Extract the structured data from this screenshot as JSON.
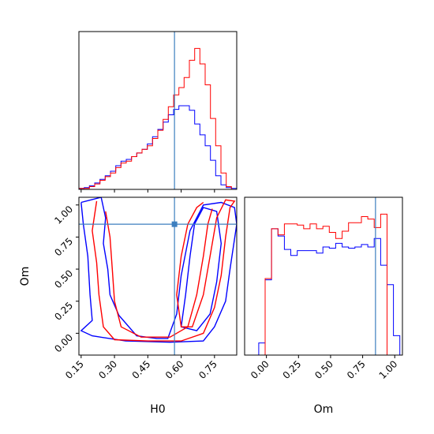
{
  "chart_data": {
    "type": "corner",
    "parameters": [
      "H0",
      "Om"
    ],
    "truth": {
      "H0": 0.57,
      "Om": 0.85
    },
    "colors": {
      "series_a": "#0000ff",
      "series_b": "#ff0000",
      "truth": "#3d7fbf"
    },
    "panels": [
      {
        "id": "hist-H0",
        "type": "histogram",
        "x_range": [
          0.14,
          0.85
        ],
        "bin_edges": [
          0.14,
          0.1637,
          0.1873,
          0.211,
          0.2347,
          0.2583,
          0.282,
          0.3057,
          0.3293,
          0.353,
          0.3767,
          0.4003,
          0.424,
          0.4477,
          0.4713,
          0.495,
          0.5187,
          0.5423,
          0.566,
          0.5897,
          0.6133,
          0.637,
          0.6607,
          0.6843,
          0.708,
          0.7317,
          0.7553,
          0.779,
          0.8027,
          0.8263,
          0.85
        ],
        "series": [
          {
            "color_key": "series_a",
            "counts": [
              1,
              2,
              4,
              7,
              11,
              15,
              20,
              26,
              31,
              33,
              36,
              40,
              44,
              50,
              58,
              66,
              74,
              82,
              88,
              92,
              92,
              87,
              72,
              60,
              48,
              32,
              15,
              5,
              2,
              1
            ]
          },
          {
            "color_key": "series_b",
            "counts": [
              1,
              1,
              3,
              6,
              10,
              14,
              18,
              24,
              29,
              31,
              36,
              40,
              44,
              48,
              56,
              65,
              77,
              91,
              104,
              112,
              123,
              142,
              155,
              138,
              115,
              78,
              48,
              18,
              3,
              0
            ]
          }
        ],
        "x_ticks": [
          0.15,
          0.3,
          0.45,
          0.6,
          0.75
        ]
      },
      {
        "id": "contour-H0-Om",
        "type": "contour",
        "x_range": [
          0.14,
          0.85
        ],
        "y_range": [
          -0.17,
          1.06
        ],
        "x_ticks": [
          0.15,
          0.3,
          0.45,
          0.6,
          0.75
        ],
        "y_ticks": [
          0.0,
          0.25,
          0.5,
          0.75,
          1.0
        ],
        "x_tick_labels": [
          "0.15",
          "0.30",
          "0.45",
          "0.60",
          "0.75"
        ],
        "y_tick_labels": [
          "0.00",
          "0.25",
          "0.50",
          "0.75",
          "1.00"
        ],
        "xlabel": "H0",
        "ylabel": "Om",
        "contours": [
          {
            "color_key": "series_a",
            "points": [
              [
                0.15,
                1.02
              ],
              [
                0.24,
                1.06
              ],
              [
                0.26,
                0.9
              ],
              [
                0.25,
                0.7
              ],
              [
                0.27,
                0.5
              ],
              [
                0.28,
                0.3
              ],
              [
                0.32,
                0.14
              ],
              [
                0.4,
                -0.02
              ],
              [
                0.49,
                -0.04
              ],
              [
                0.54,
                -0.04
              ],
              [
                0.58,
                0.15
              ],
              [
                0.6,
                0.45
              ],
              [
                0.64,
                0.8
              ],
              [
                0.7,
                1.0
              ],
              [
                0.78,
                1.02
              ],
              [
                0.84,
                0.98
              ],
              [
                0.85,
                0.85
              ],
              [
                0.82,
                0.5
              ],
              [
                0.8,
                0.25
              ],
              [
                0.75,
                0.05
              ],
              [
                0.7,
                -0.06
              ],
              [
                0.55,
                -0.07
              ],
              [
                0.35,
                -0.06
              ],
              [
                0.2,
                -0.02
              ],
              [
                0.15,
                0.02
              ],
              [
                0.2,
                0.1
              ],
              [
                0.19,
                0.3
              ],
              [
                0.18,
                0.6
              ],
              [
                0.16,
                0.85
              ],
              [
                0.15,
                1.02
              ]
            ]
          },
          {
            "color_key": "series_a",
            "points": [
              [
                0.6,
                0.05
              ],
              [
                0.62,
                0.3
              ],
              [
                0.64,
                0.6
              ],
              [
                0.66,
                0.85
              ],
              [
                0.7,
                0.98
              ],
              [
                0.76,
                0.95
              ],
              [
                0.78,
                0.7
              ],
              [
                0.76,
                0.4
              ],
              [
                0.73,
                0.15
              ],
              [
                0.67,
                0.02
              ],
              [
                0.6,
                0.05
              ]
            ]
          },
          {
            "color_key": "series_b",
            "points": [
              [
                0.22,
                1.03
              ],
              [
                0.2,
                0.8
              ],
              [
                0.22,
                0.55
              ],
              [
                0.23,
                0.3
              ],
              [
                0.25,
                0.05
              ],
              [
                0.3,
                -0.05
              ],
              [
                0.45,
                -0.06
              ],
              [
                0.6,
                -0.06
              ],
              [
                0.7,
                0.0
              ],
              [
                0.75,
                0.2
              ],
              [
                0.78,
                0.45
              ],
              [
                0.8,
                0.75
              ],
              [
                0.82,
                0.98
              ],
              [
                0.84,
                1.03
              ],
              [
                0.8,
                1.04
              ],
              [
                0.76,
                0.9
              ],
              [
                0.73,
                0.6
              ],
              [
                0.7,
                0.3
              ],
              [
                0.65,
                0.05
              ],
              [
                0.6,
                0.05
              ],
              [
                0.58,
                0.3
              ],
              [
                0.6,
                0.6
              ],
              [
                0.63,
                0.85
              ],
              [
                0.67,
                0.98
              ],
              [
                0.7,
                1.02
              ]
            ]
          },
          {
            "color_key": "series_b",
            "points": [
              [
                0.26,
                0.95
              ],
              [
                0.28,
                0.75
              ],
              [
                0.29,
                0.5
              ],
              [
                0.3,
                0.25
              ],
              [
                0.33,
                0.05
              ],
              [
                0.42,
                -0.03
              ],
              [
                0.55,
                -0.03
              ],
              [
                0.63,
                0.05
              ],
              [
                0.67,
                0.3
              ],
              [
                0.7,
                0.6
              ],
              [
                0.72,
                0.85
              ],
              [
                0.74,
                0.97
              ]
            ]
          }
        ]
      },
      {
        "id": "hist-Om",
        "type": "histogram",
        "x_range": [
          -0.17,
          1.06
        ],
        "bin_edges": [
          -0.06,
          -0.01,
          0.04,
          0.09,
          0.14,
          0.19,
          0.24,
          0.29,
          0.34,
          0.39,
          0.44,
          0.49,
          0.54,
          0.59,
          0.64,
          0.69,
          0.74,
          0.79,
          0.84,
          0.89,
          0.94,
          0.99,
          1.04
        ],
        "series": [
          {
            "color_key": "series_a",
            "counts": [
              10,
              62,
              104,
              98,
              87,
              82,
              86,
              86,
              86,
              84,
              89,
              88,
              92,
              89,
              88,
              89,
              91,
              89,
              96,
              74,
              58,
              16
            ]
          },
          {
            "color_key": "series_b",
            "counts": [
              0,
              63,
              104,
              99,
              108,
              108,
              107,
              104,
              108,
              104,
              106,
              101,
              96,
              102,
              109,
              109,
              114,
              112,
              105,
              116,
              0,
              0
            ]
          }
        ],
        "x_ticks": [
          0.0,
          0.25,
          0.5,
          0.75,
          1.0
        ],
        "x_tick_labels": [
          "0.00",
          "0.25",
          "0.50",
          "0.75",
          "1.00"
        ],
        "xlabel": "Om"
      }
    ]
  }
}
